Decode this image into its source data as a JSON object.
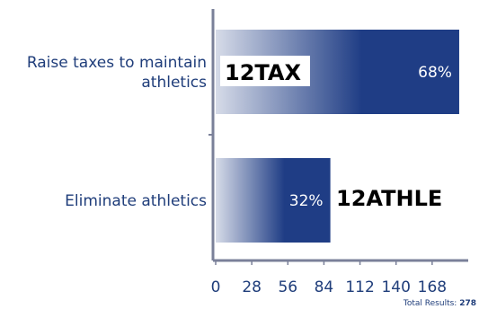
{
  "chart_data": {
    "type": "bar",
    "orientation": "horizontal",
    "categories": [
      "Raise taxes to maintain athletics",
      "Eliminate athletics"
    ],
    "category_lines": [
      [
        "Raise taxes to maintain",
        "athletics"
      ],
      [
        "Eliminate athletics"
      ]
    ],
    "values": [
      189,
      89
    ],
    "data_labels": [
      "68%",
      "32%"
    ],
    "xlim": [
      0,
      196
    ],
    "xticks": [
      0,
      28,
      56,
      84,
      112,
      140,
      168
    ],
    "grid": false
  },
  "codes": [
    "12TAX",
    "12ATHLE"
  ],
  "footer": {
    "total_label": "Total Results:",
    "total_value": "278"
  },
  "colors": {
    "bar_dark": "#1f3d85",
    "bar_light": "#d6dbe8",
    "text": "#1f3d7a",
    "axis": "#7a8099"
  }
}
